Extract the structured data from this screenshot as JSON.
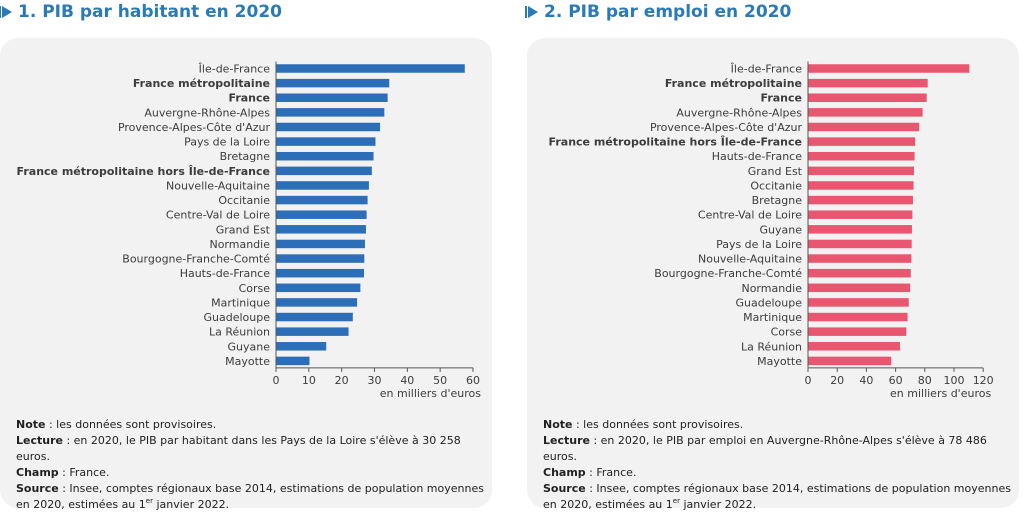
{
  "colors": {
    "title": "#2a7ab8",
    "panel1_bar": "#2d6eb8",
    "panel2_bar": "#e8566f",
    "card_bg": "#f2f2f3"
  },
  "panels": [
    {
      "title": "1. PIB par habitant en 2020",
      "unit_label": "en milliers d'euros",
      "notes": {
        "note_label": "Note",
        "note_text": " : les données sont provisoires.",
        "lecture_label": "Lecture",
        "lecture_text": " : en 2020, le PIB par habitant dans les Pays de la Loire s'élève à 30 258 euros.",
        "champ_label": "Champ",
        "champ_text": " : France.",
        "source_label": "Source",
        "source_text_1": " : Insee, comptes régionaux base 2014, estimations de population moyennes en 2020, estimées au 1",
        "source_sup": "er",
        "source_text_2": " janvier 2022."
      }
    },
    {
      "title": "2. PIB par emploi en 2020",
      "unit_label": "en milliers d'euros",
      "notes": {
        "note_label": "Note",
        "note_text": " : les données sont provisoires.",
        "lecture_label": "Lecture",
        "lecture_text": " : en 2020, le PIB par emploi en Auvergne-Rhône-Alpes s'élève à 78 486 euros.",
        "champ_label": "Champ",
        "champ_text": " : France.",
        "source_label": "Source",
        "source_text_1": " : Insee, comptes régionaux base 2014, estimations de population moyennes en 2020, estimées au 1",
        "source_sup": "er",
        "source_text_2": " janvier 2022."
      }
    }
  ],
  "chart_data": [
    {
      "type": "bar",
      "orientation": "horizontal",
      "title": "1. PIB par habitant en 2020",
      "xlabel": "en milliers d'euros",
      "xlim": [
        0,
        60
      ],
      "ticks": [
        0,
        10,
        20,
        30,
        40,
        50,
        60
      ],
      "categories": [
        "Île-de-France",
        "France métropolitaine",
        "France",
        "Auvergne-Rhône-Alpes",
        "Provence-Alpes-Côte d'Azur",
        "Pays de la Loire",
        "Bretagne",
        "France métropolitaine hors Île-de-France",
        "Nouvelle-Aquitaine",
        "Occitanie",
        "Centre-Val de Loire",
        "Grand Est",
        "Normandie",
        "Bourgogne-Franche-Comté",
        "Hauts-de-France",
        "Corse",
        "Martinique",
        "Guadeloupe",
        "La Réunion",
        "Guyane",
        "Mayotte"
      ],
      "bold": [
        false,
        true,
        true,
        false,
        false,
        false,
        false,
        true,
        false,
        false,
        false,
        false,
        false,
        false,
        false,
        false,
        false,
        false,
        false,
        false,
        false
      ],
      "values": [
        57.5,
        34.5,
        34.0,
        33.0,
        31.7,
        30.3,
        29.7,
        29.2,
        28.3,
        27.9,
        27.6,
        27.4,
        27.1,
        26.9,
        26.8,
        25.7,
        24.7,
        23.4,
        22.1,
        15.3,
        10.2
      ],
      "grid": false
    },
    {
      "type": "bar",
      "orientation": "horizontal",
      "title": "2. PIB par emploi en 2020",
      "xlabel": "en milliers d'euros",
      "xlim": [
        0,
        130
      ],
      "ticks": [
        0,
        20,
        40,
        60,
        80,
        100,
        120
      ],
      "categories": [
        "Île-de-France",
        "France métropolitaine",
        "France",
        "Auvergne-Rhône-Alpes",
        "Provence-Alpes-Côte d'Azur",
        "France métropolitaine hors Île-de-France",
        "Hauts-de-France",
        "Grand Est",
        "Occitanie",
        "Bretagne",
        "Centre-Val de Loire",
        "Guyane",
        "Pays de la Loire",
        "Nouvelle-Aquitaine",
        "Bourgogne-Franche-Comté",
        "Normandie",
        "Guadeloupe",
        "Martinique",
        "Corse",
        "La Réunion",
        "Mayotte"
      ],
      "bold": [
        false,
        true,
        true,
        false,
        false,
        true,
        false,
        false,
        false,
        false,
        false,
        false,
        false,
        false,
        false,
        false,
        false,
        false,
        false,
        false,
        false
      ],
      "values": [
        110.5,
        82.0,
        81.3,
        78.5,
        76.2,
        73.4,
        73.0,
        72.6,
        72.3,
        71.9,
        71.5,
        71.2,
        71.0,
        70.8,
        70.4,
        70.0,
        69.0,
        68.2,
        67.3,
        63.0,
        57.0
      ],
      "grid": false
    }
  ]
}
